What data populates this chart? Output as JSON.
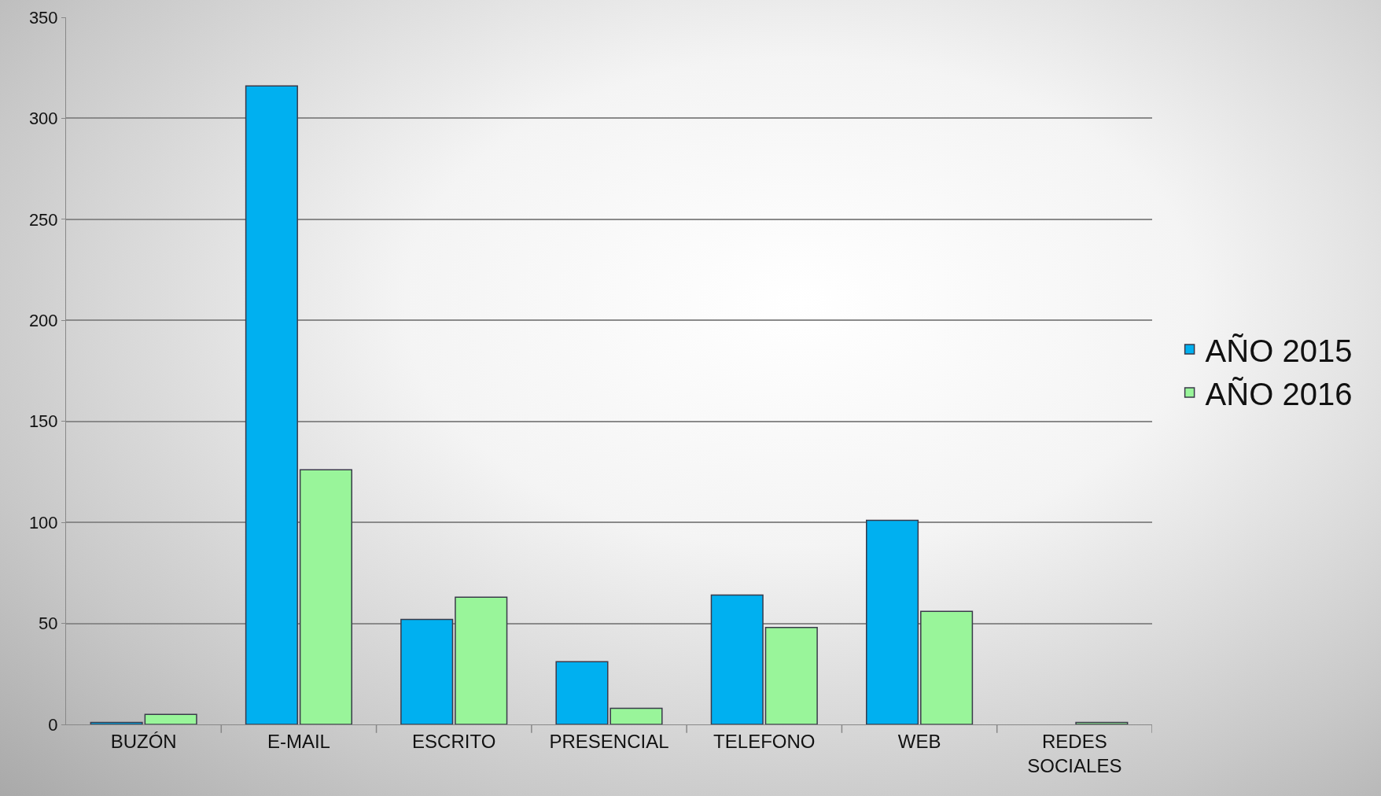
{
  "chart_data": {
    "type": "bar",
    "categories": [
      "BUZÓN",
      "E-MAIL",
      "ESCRITO",
      "PRESENCIAL",
      "TELEFONO",
      "WEB",
      "REDES SOCIALES"
    ],
    "series": [
      {
        "name": "AÑO 2015",
        "color": "#00b0f0",
        "values": [
          1,
          316,
          52,
          31,
          64,
          101,
          null
        ]
      },
      {
        "name": "AÑO 2016",
        "color": "#99f59a",
        "values": [
          5,
          126,
          63,
          8,
          48,
          56,
          1
        ]
      }
    ],
    "ylim": [
      0,
      350
    ],
    "yticks": [
      0,
      50,
      100,
      150,
      200,
      250,
      300,
      350
    ],
    "grid": "y",
    "legend": "right"
  }
}
